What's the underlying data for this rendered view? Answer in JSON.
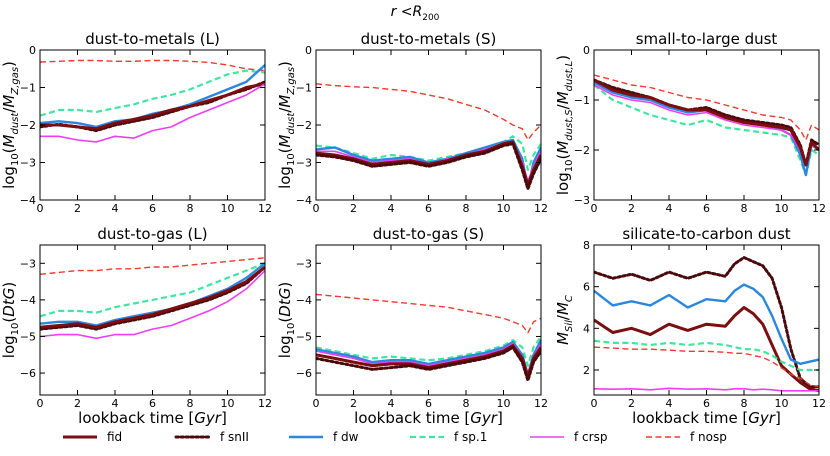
{
  "figure_title": "r <R200",
  "colors": {
    "fid": "#7a0e10",
    "snII": "#4a0a0a",
    "dw": "#2b86e0",
    "sp1": "#3ee6a0",
    "crsp": "#ee3ef2",
    "nosp": "#f03a2e"
  },
  "legend": [
    {
      "key": "fid",
      "label": "fid",
      "dash": "solid",
      "width": 3
    },
    {
      "key": "snII",
      "label": "f snII",
      "dash": "dot",
      "width": 3
    },
    {
      "key": "dw",
      "label": "f dw",
      "dash": "solid",
      "width": 2.4
    },
    {
      "key": "sp1",
      "label": "f sp.1",
      "dash": "dash",
      "width": 2.2
    },
    {
      "key": "crsp",
      "label": "f crsp",
      "dash": "solid",
      "width": 1.6
    },
    {
      "key": "nosp",
      "label": "f nosp",
      "dash": "dash",
      "width": 1.4
    }
  ],
  "chart_data": [
    {
      "type": "line",
      "title": "dust-to-metals (L)",
      "ylabel": "log10(Mdust/MZ,gas)",
      "xlabel": "",
      "xlim": [
        0,
        12
      ],
      "ylim": [
        -4,
        0
      ],
      "xticks": [
        0,
        2,
        4,
        6,
        8,
        10,
        12
      ],
      "yticks": [
        0,
        -1,
        -2,
        -3,
        -4
      ],
      "x": [
        0,
        1,
        2,
        3,
        4,
        5,
        6,
        7,
        8,
        9,
        10,
        11,
        12
      ],
      "series": [
        {
          "key": "nosp",
          "values": [
            -0.32,
            -0.3,
            -0.28,
            -0.28,
            -0.3,
            -0.3,
            -0.28,
            -0.28,
            -0.3,
            -0.33,
            -0.4,
            -0.5,
            -0.55
          ]
        },
        {
          "key": "sp1",
          "values": [
            -1.75,
            -1.6,
            -1.6,
            -1.65,
            -1.55,
            -1.45,
            -1.3,
            -1.2,
            -1.05,
            -0.85,
            -0.65,
            -0.55,
            -0.6
          ]
        },
        {
          "key": "dw",
          "values": [
            -1.95,
            -1.9,
            -1.95,
            -2.05,
            -1.9,
            -1.85,
            -1.7,
            -1.6,
            -1.45,
            -1.25,
            -1.05,
            -0.85,
            -0.4
          ]
        },
        {
          "key": "snII",
          "values": [
            -2.05,
            -1.98,
            -2.05,
            -2.15,
            -2.0,
            -1.9,
            -1.8,
            -1.65,
            -1.5,
            -1.4,
            -1.2,
            -1.05,
            -0.85
          ]
        },
        {
          "key": "fid",
          "values": [
            -2.0,
            -2.0,
            -2.05,
            -2.1,
            -1.95,
            -1.85,
            -1.75,
            -1.6,
            -1.5,
            -1.35,
            -1.2,
            -1.0,
            -0.9
          ]
        },
        {
          "key": "crsp",
          "values": [
            -2.3,
            -2.3,
            -2.4,
            -2.45,
            -2.3,
            -2.35,
            -2.15,
            -2.05,
            -1.8,
            -1.6,
            -1.4,
            -1.2,
            -0.9
          ]
        }
      ]
    },
    {
      "type": "line",
      "title": "dust-to-metals (S)",
      "ylabel": "log10(Mdust/MZ,gas)",
      "xlabel": "",
      "xlim": [
        0,
        12
      ],
      "ylim": [
        -4,
        0
      ],
      "xticks": [
        0,
        2,
        4,
        6,
        8,
        10,
        12
      ],
      "yticks": [
        0,
        -1,
        -2,
        -3,
        -4
      ],
      "x": [
        0,
        1,
        2,
        3,
        4,
        5,
        6,
        7,
        8,
        9,
        10,
        10.5,
        11,
        11.3,
        11.6,
        12
      ],
      "series": [
        {
          "key": "nosp",
          "values": [
            -0.9,
            -0.95,
            -0.98,
            -1.0,
            -1.05,
            -1.1,
            -1.2,
            -1.3,
            -1.45,
            -1.6,
            -1.85,
            -2.0,
            -2.1,
            -2.4,
            -2.2,
            -2.0
          ]
        },
        {
          "key": "sp1",
          "values": [
            -2.55,
            -2.6,
            -2.75,
            -2.9,
            -2.8,
            -2.85,
            -2.95,
            -2.85,
            -2.75,
            -2.6,
            -2.45,
            -2.3,
            -2.5,
            -3.2,
            -2.8,
            -2.5
          ]
        },
        {
          "key": "dw",
          "values": [
            -2.65,
            -2.6,
            -2.8,
            -2.95,
            -2.9,
            -2.85,
            -3.0,
            -2.9,
            -2.75,
            -2.6,
            -2.45,
            -2.4,
            -2.9,
            -3.7,
            -3.0,
            -2.6
          ]
        },
        {
          "key": "crsp",
          "values": [
            -2.7,
            -2.7,
            -2.85,
            -3.0,
            -2.95,
            -2.9,
            -3.05,
            -2.9,
            -2.8,
            -2.65,
            -2.5,
            -2.45,
            -3.0,
            -3.5,
            -3.1,
            -2.7
          ]
        },
        {
          "key": "fid",
          "values": [
            -2.75,
            -2.8,
            -2.9,
            -3.05,
            -3.0,
            -2.95,
            -3.05,
            -2.95,
            -2.8,
            -2.7,
            -2.5,
            -2.45,
            -3.1,
            -3.6,
            -3.2,
            -2.8
          ]
        },
        {
          "key": "snII",
          "values": [
            -2.8,
            -2.85,
            -2.95,
            -3.1,
            -3.05,
            -3.0,
            -3.1,
            -3.0,
            -2.85,
            -2.75,
            -2.55,
            -2.5,
            -3.2,
            -3.7,
            -3.3,
            -2.9
          ]
        }
      ]
    },
    {
      "type": "line",
      "title": "small-to-large dust",
      "ylabel": "log10(Mdust,S/Mdust,L)",
      "xlabel": "",
      "xlim": [
        0,
        12
      ],
      "ylim": [
        -3,
        0
      ],
      "xticks": [
        0,
        2,
        4,
        6,
        8,
        10,
        12
      ],
      "yticks": [
        0,
        -1,
        -2,
        -3
      ],
      "x": [
        0,
        1,
        2,
        3,
        4,
        5,
        6,
        7,
        8,
        9,
        10,
        10.5,
        11,
        11.3,
        11.6,
        12
      ],
      "series": [
        {
          "key": "nosp",
          "values": [
            -0.5,
            -0.6,
            -0.7,
            -0.75,
            -0.85,
            -0.95,
            -1.0,
            -1.1,
            -1.2,
            -1.3,
            -1.35,
            -1.4,
            -1.6,
            -1.8,
            -1.5,
            -1.6
          ]
        },
        {
          "key": "sp1",
          "values": [
            -0.7,
            -1.0,
            -1.15,
            -1.3,
            -1.4,
            -1.5,
            -1.4,
            -1.55,
            -1.6,
            -1.65,
            -1.7,
            -1.75,
            -2.2,
            -2.5,
            -2.0,
            -2.1
          ]
        },
        {
          "key": "dw",
          "values": [
            -0.65,
            -0.85,
            -0.95,
            -1.0,
            -1.15,
            -1.25,
            -1.2,
            -1.35,
            -1.45,
            -1.5,
            -1.6,
            -1.7,
            -2.1,
            -2.5,
            -1.9,
            -2.0
          ]
        },
        {
          "key": "crsp",
          "values": [
            -0.7,
            -0.9,
            -1.0,
            -1.05,
            -1.2,
            -1.3,
            -1.25,
            -1.4,
            -1.5,
            -1.55,
            -1.6,
            -1.7,
            -2.0,
            -2.3,
            -1.9,
            -2.0
          ]
        },
        {
          "key": "snII",
          "values": [
            -0.6,
            -0.75,
            -0.85,
            -0.95,
            -1.1,
            -1.2,
            -1.15,
            -1.3,
            -1.4,
            -1.45,
            -1.5,
            -1.55,
            -1.9,
            -2.3,
            -1.8,
            -1.9
          ]
        },
        {
          "key": "fid",
          "values": [
            -0.6,
            -0.8,
            -0.9,
            -0.95,
            -1.1,
            -1.2,
            -1.2,
            -1.35,
            -1.45,
            -1.5,
            -1.55,
            -1.6,
            -1.95,
            -2.3,
            -1.85,
            -2.0
          ]
        }
      ]
    },
    {
      "type": "line",
      "title": "dust-to-gas (L)",
      "ylabel": "log10(DtG)",
      "xlabel": "lookback time [Gyr]",
      "xlim": [
        0,
        12
      ],
      "ylim": [
        -6.6,
        -2.5
      ],
      "xticks": [
        0,
        2,
        4,
        6,
        8,
        10,
        12
      ],
      "yticks": [
        -3,
        -4,
        -5,
        -6
      ],
      "x": [
        0,
        1,
        2,
        3,
        4,
        5,
        6,
        7,
        8,
        9,
        10,
        11,
        12
      ],
      "series": [
        {
          "key": "nosp",
          "values": [
            -3.3,
            -3.25,
            -3.2,
            -3.2,
            -3.15,
            -3.15,
            -3.1,
            -3.1,
            -3.05,
            -3.0,
            -2.95,
            -2.9,
            -2.85
          ]
        },
        {
          "key": "sp1",
          "values": [
            -4.45,
            -4.3,
            -4.3,
            -4.35,
            -4.2,
            -4.1,
            -4.0,
            -3.9,
            -3.8,
            -3.6,
            -3.4,
            -3.2,
            -3.0
          ]
        },
        {
          "key": "dw",
          "values": [
            -4.65,
            -4.6,
            -4.6,
            -4.7,
            -4.55,
            -4.45,
            -4.35,
            -4.25,
            -4.1,
            -3.9,
            -3.7,
            -3.4,
            -3.0
          ]
        },
        {
          "key": "snII",
          "values": [
            -4.8,
            -4.75,
            -4.7,
            -4.8,
            -4.65,
            -4.55,
            -4.45,
            -4.3,
            -4.15,
            -4.0,
            -3.8,
            -3.55,
            -3.1
          ]
        },
        {
          "key": "fid",
          "values": [
            -4.75,
            -4.7,
            -4.65,
            -4.75,
            -4.6,
            -4.5,
            -4.4,
            -4.25,
            -4.1,
            -3.95,
            -3.75,
            -3.5,
            -3.1
          ]
        },
        {
          "key": "crsp",
          "values": [
            -5.0,
            -4.95,
            -4.95,
            -5.05,
            -4.95,
            -4.95,
            -4.8,
            -4.7,
            -4.5,
            -4.3,
            -4.05,
            -3.7,
            -3.2
          ]
        }
      ]
    },
    {
      "type": "line",
      "title": "dust-to-gas (S)",
      "ylabel": "log10(DtG)",
      "xlabel": "lookback time [Gyr]",
      "xlim": [
        0,
        12
      ],
      "ylim": [
        -6.6,
        -2.5
      ],
      "xticks": [
        0,
        2,
        4,
        6,
        8,
        10,
        12
      ],
      "yticks": [
        -3,
        -4,
        -5,
        -6
      ],
      "x": [
        0,
        1,
        2,
        3,
        4,
        5,
        6,
        7,
        8,
        9,
        10,
        10.5,
        11,
        11.3,
        11.6,
        12
      ],
      "series": [
        {
          "key": "nosp",
          "values": [
            -3.85,
            -3.9,
            -3.95,
            -4.0,
            -4.05,
            -4.1,
            -4.15,
            -4.2,
            -4.3,
            -4.4,
            -4.5,
            -4.6,
            -4.7,
            -4.9,
            -4.6,
            -4.5
          ]
        },
        {
          "key": "sp1",
          "values": [
            -5.3,
            -5.4,
            -5.5,
            -5.6,
            -5.55,
            -5.6,
            -5.65,
            -5.6,
            -5.5,
            -5.4,
            -5.25,
            -5.1,
            -5.3,
            -5.8,
            -5.3,
            -5.0
          ]
        },
        {
          "key": "dw",
          "values": [
            -5.35,
            -5.45,
            -5.55,
            -5.7,
            -5.65,
            -5.65,
            -5.75,
            -5.65,
            -5.55,
            -5.45,
            -5.3,
            -5.15,
            -5.5,
            -6.05,
            -5.5,
            -5.1
          ]
        },
        {
          "key": "crsp",
          "values": [
            -5.4,
            -5.5,
            -5.6,
            -5.75,
            -5.7,
            -5.7,
            -5.8,
            -5.7,
            -5.6,
            -5.5,
            -5.35,
            -5.2,
            -5.55,
            -6.0,
            -5.55,
            -5.2
          ]
        },
        {
          "key": "fid",
          "values": [
            -5.5,
            -5.6,
            -5.7,
            -5.8,
            -5.75,
            -5.75,
            -5.85,
            -5.75,
            -5.65,
            -5.55,
            -5.4,
            -5.25,
            -5.6,
            -6.1,
            -5.6,
            -5.3
          ]
        },
        {
          "key": "snII",
          "values": [
            -5.6,
            -5.7,
            -5.8,
            -5.9,
            -5.85,
            -5.8,
            -5.9,
            -5.8,
            -5.7,
            -5.6,
            -5.45,
            -5.3,
            -5.7,
            -6.2,
            -5.7,
            -5.4
          ]
        }
      ]
    },
    {
      "type": "line",
      "title": "silicate-to-carbon dust",
      "ylabel": "MSil/MC",
      "xlabel": "lookback time [Gyr]",
      "xlim": [
        0,
        12
      ],
      "ylim": [
        0.8,
        8
      ],
      "xticks": [
        0,
        2,
        4,
        6,
        8,
        10,
        12
      ],
      "yticks": [
        2,
        4,
        6,
        8
      ],
      "x": [
        0,
        1,
        2,
        3,
        4,
        5,
        6,
        7,
        7.5,
        8,
        8.5,
        9,
        9.5,
        10,
        10.5,
        11,
        11.5,
        12
      ],
      "series": [
        {
          "key": "snII",
          "values": [
            6.7,
            6.4,
            6.6,
            6.3,
            6.7,
            6.4,
            6.7,
            6.5,
            7.1,
            7.4,
            7.2,
            7.0,
            6.4,
            5.0,
            3.0,
            1.6,
            1.2,
            1.2
          ]
        },
        {
          "key": "dw",
          "values": [
            5.8,
            5.1,
            5.3,
            5.1,
            5.6,
            5.0,
            5.4,
            5.3,
            5.8,
            6.1,
            5.9,
            5.5,
            4.6,
            3.5,
            2.5,
            2.3,
            2.4,
            2.5
          ]
        },
        {
          "key": "fid",
          "values": [
            4.4,
            3.8,
            4.0,
            3.7,
            4.2,
            3.9,
            4.2,
            4.1,
            4.6,
            5.0,
            4.7,
            4.2,
            3.2,
            2.2,
            1.8,
            1.4,
            1.1,
            1.0
          ]
        },
        {
          "key": "sp1",
          "values": [
            3.4,
            3.3,
            3.3,
            3.2,
            3.3,
            3.2,
            3.3,
            3.2,
            3.1,
            3.0,
            3.0,
            2.9,
            2.7,
            2.4,
            2.2,
            2.0,
            2.0,
            2.0
          ]
        },
        {
          "key": "nosp",
          "values": [
            3.1,
            3.05,
            3.0,
            3.0,
            2.95,
            2.9,
            2.9,
            2.85,
            2.8,
            2.8,
            2.7,
            2.6,
            2.4,
            2.1,
            1.8,
            1.6,
            1.3,
            1.2
          ]
        },
        {
          "key": "crsp",
          "values": [
            1.1,
            1.08,
            1.1,
            1.05,
            1.12,
            1.08,
            1.1,
            1.05,
            1.1,
            1.1,
            1.05,
            1.08,
            1.05,
            1.0,
            1.0,
            1.0,
            1.0,
            1.0
          ]
        }
      ]
    }
  ]
}
